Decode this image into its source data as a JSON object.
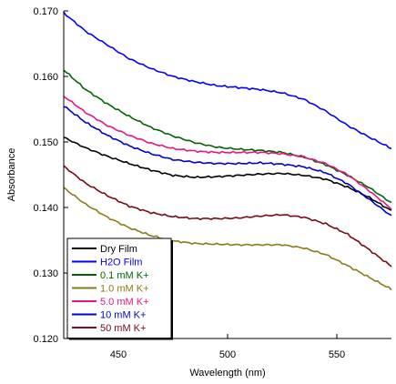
{
  "chart_data": {
    "type": "line",
    "title": "",
    "xlabel": "Wavelength (nm)",
    "ylabel": "Absorbance",
    "xlim": [
      425,
      575
    ],
    "ylim": [
      0.12,
      0.17
    ],
    "xticks": [
      450,
      500,
      550
    ],
    "xtick_labels": [
      "450",
      "500",
      "550"
    ],
    "yticks": [
      0.12,
      0.13,
      0.14,
      0.15,
      0.16,
      0.17
    ],
    "ytick_labels": [
      "0.120",
      "0.130",
      "0.140",
      "0.150",
      "0.160",
      "0.170"
    ],
    "grid": false,
    "legend_position": "bottom-left",
    "x": [
      425,
      435,
      445,
      455,
      465,
      475,
      485,
      495,
      505,
      515,
      525,
      535,
      545,
      555,
      565,
      575
    ],
    "series": [
      {
        "name": "Dry Film",
        "color": "#000000",
        "values": [
          0.1507,
          0.1491,
          0.1478,
          0.1467,
          0.1457,
          0.1449,
          0.1446,
          0.1447,
          0.1449,
          0.1451,
          0.1452,
          0.1449,
          0.1443,
          0.1431,
          0.1415,
          0.1395
        ]
      },
      {
        "name": "H2O Film",
        "color": "#0000ff",
        "values": [
          0.1697,
          0.1669,
          0.1648,
          0.1627,
          0.1612,
          0.16,
          0.1592,
          0.1586,
          0.1583,
          0.158,
          0.1575,
          0.1565,
          0.1547,
          0.1525,
          0.1507,
          0.149
        ]
      },
      {
        "name": "0.1 mM K+",
        "color": "#006400",
        "values": [
          0.161,
          0.158,
          0.1558,
          0.1539,
          0.1522,
          0.1509,
          0.1499,
          0.1492,
          0.1489,
          0.1487,
          0.1484,
          0.1477,
          0.1465,
          0.1449,
          0.143,
          0.1407
        ]
      },
      {
        "name": "1.0 mM K+",
        "color": "#8b7a1a",
        "values": [
          0.143,
          0.1405,
          0.1385,
          0.1369,
          0.1357,
          0.1349,
          0.1345,
          0.1344,
          0.1343,
          0.1343,
          0.1343,
          0.1338,
          0.1328,
          0.1311,
          0.1293,
          0.1275
        ]
      },
      {
        "name": "5.0 mM K+",
        "color": "#e5177f",
        "values": [
          0.157,
          0.1545,
          0.1525,
          0.151,
          0.1498,
          0.149,
          0.1486,
          0.1484,
          0.1484,
          0.1484,
          0.1482,
          0.1477,
          0.1467,
          0.145,
          0.1425,
          0.1398
        ]
      },
      {
        "name": "10 mM K+",
        "color": "#0000cd",
        "values": [
          0.1555,
          0.153,
          0.151,
          0.1494,
          0.1482,
          0.1473,
          0.1469,
          0.1467,
          0.1467,
          0.1468,
          0.1466,
          0.1462,
          0.1453,
          0.1436,
          0.1412,
          0.1387
        ]
      },
      {
        "name": "50 mM K+",
        "color": "#7a0a14",
        "values": [
          0.1463,
          0.1437,
          0.1418,
          0.1402,
          0.1392,
          0.1386,
          0.1383,
          0.1383,
          0.1384,
          0.1387,
          0.1389,
          0.1385,
          0.1375,
          0.1359,
          0.1335,
          0.131
        ]
      }
    ]
  }
}
